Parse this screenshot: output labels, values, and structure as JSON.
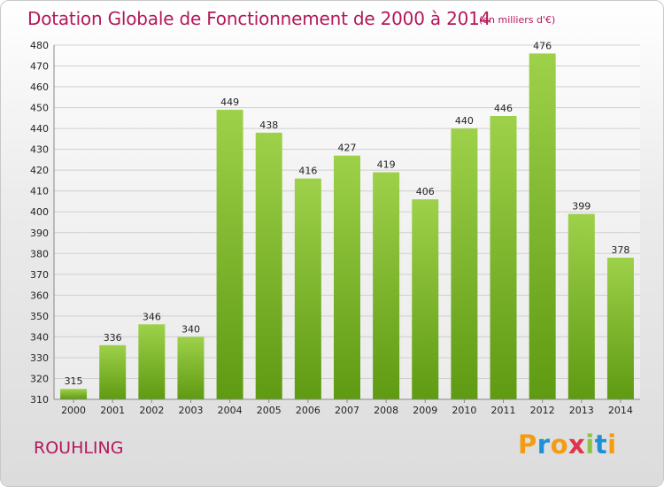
{
  "header": {
    "title": "Dotation Globale de Fonctionnement de 2000 à 2014",
    "unit": "(en milliers d'€)"
  },
  "footer": {
    "place": "ROUHLING",
    "logo_text": "Proxiti"
  },
  "colors": {
    "title": "#b4185a",
    "bar_light": "#9ed14a",
    "bar_dark": "#5e9a12",
    "logo_letters": [
      "#f39c12",
      "#1e90d6",
      "#f39c12",
      "#e0344e",
      "#8bc34a",
      "#1e90d6",
      "#f39c12"
    ]
  },
  "chart_data": {
    "type": "bar",
    "title": "Dotation Globale de Fonctionnement de 2000 à 2014",
    "unit": "(en milliers d'€)",
    "categories": [
      "2000",
      "2001",
      "2002",
      "2003",
      "2004",
      "2005",
      "2006",
      "2007",
      "2008",
      "2009",
      "2010",
      "2011",
      "2012",
      "2013",
      "2014"
    ],
    "values": [
      315,
      336,
      346,
      340,
      449,
      438,
      416,
      427,
      419,
      406,
      440,
      446,
      476,
      399,
      378
    ],
    "ylim": [
      310,
      480
    ],
    "yticks": [
      310,
      320,
      330,
      340,
      350,
      360,
      370,
      380,
      390,
      400,
      410,
      420,
      430,
      440,
      450,
      460,
      470,
      480
    ],
    "grid": true,
    "legend": "none"
  }
}
